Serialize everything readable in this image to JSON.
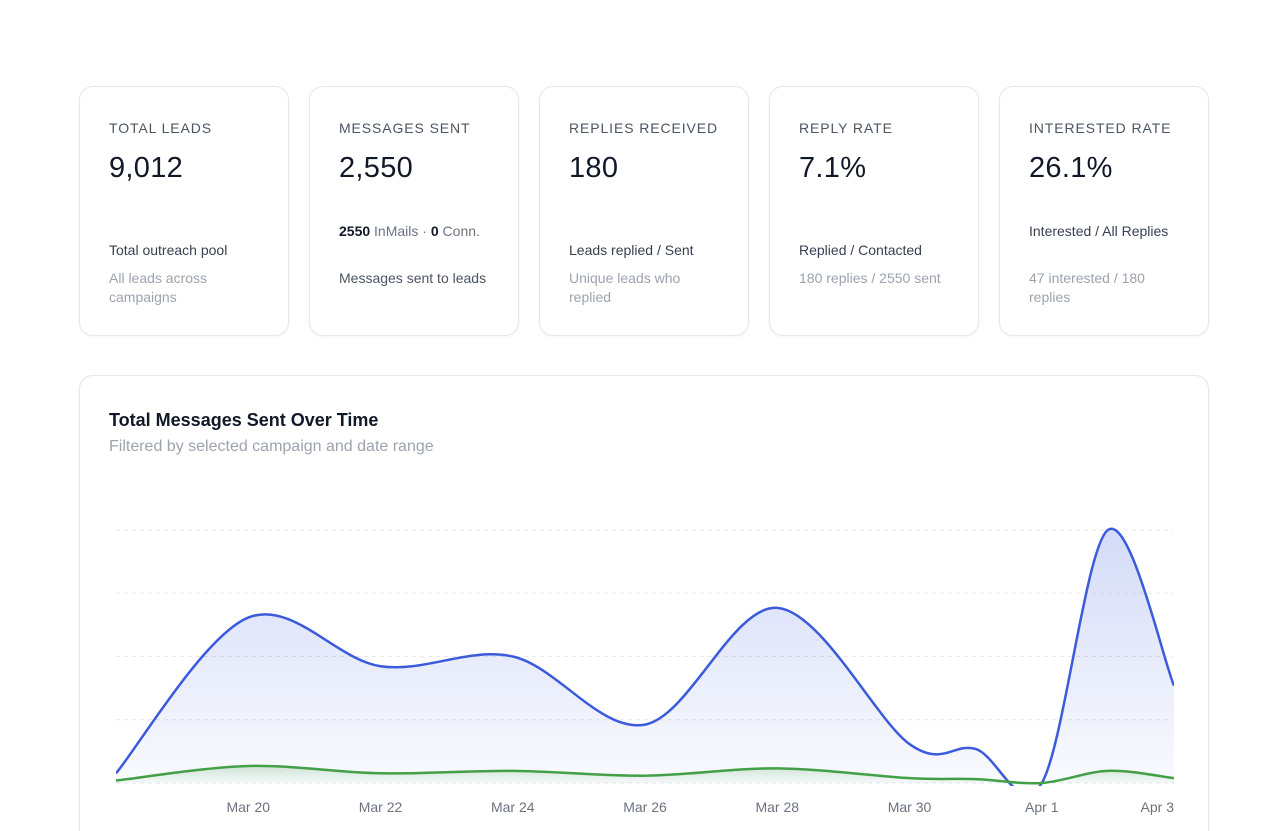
{
  "stats": [
    {
      "label": "TOTAL LEADS",
      "value": "9,012",
      "description": "Total outreach pool",
      "subtext": "All leads across campaigns"
    },
    {
      "label": "MESSAGES SENT",
      "value": "2,550",
      "breakdown": {
        "inmails_count": "2550",
        "inmails_label": "InMails",
        "separator": "·",
        "conn_count": "0",
        "conn_label": "Conn."
      },
      "description": "Messages sent to leads"
    },
    {
      "label": "REPLIES RECEIVED",
      "value": "180",
      "description": "Leads replied / Sent",
      "subtext": "Unique leads who replied"
    },
    {
      "label": "REPLY RATE",
      "value": "7.1%",
      "description": "Replied / Contacted",
      "subtext": "180 replies / 2550 sent"
    },
    {
      "label": "INTERESTED RATE",
      "value": "26.1%",
      "description": "Interested / All Replies",
      "subtext": "47 interested / 180 replies"
    }
  ],
  "chart": {
    "title": "Total Messages Sent Over Time",
    "subtitle": "Filtered by selected campaign and date range"
  },
  "chart_data": {
    "type": "area",
    "x": [
      "2025-03-18",
      "2025-03-20",
      "2025-03-22",
      "2025-03-24",
      "2025-03-26",
      "2025-03-28",
      "2025-03-30",
      "2025-03-31",
      "2025-04-01",
      "2025-04-02",
      "2025-04-03"
    ],
    "x_tick_labels": [
      "Mar 20",
      "Mar 22",
      "Mar 24",
      "Mar 26",
      "Mar 28",
      "Mar 30",
      "Apr 1",
      "Apr 3"
    ],
    "x_tick_dates": [
      "2025-03-20",
      "2025-03-22",
      "2025-03-24",
      "2025-03-26",
      "2025-03-28",
      "2025-03-30",
      "2025-04-01",
      "2025-04-03"
    ],
    "series": [
      {
        "name": "",
        "color": "#3b5bdb",
        "fill": true,
        "values": [
          20,
          340,
          240,
          260,
          120,
          360,
          80,
          70,
          0,
          520,
          200
        ]
      },
      {
        "name": "",
        "color": "#43a047",
        "fill": true,
        "values": [
          5,
          35,
          20,
          25,
          15,
          30,
          10,
          8,
          0,
          25,
          10
        ]
      }
    ],
    "ylim": [
      0,
      520
    ],
    "y_gridlines": 4,
    "grid": true,
    "xlabel": "",
    "ylabel": ""
  }
}
